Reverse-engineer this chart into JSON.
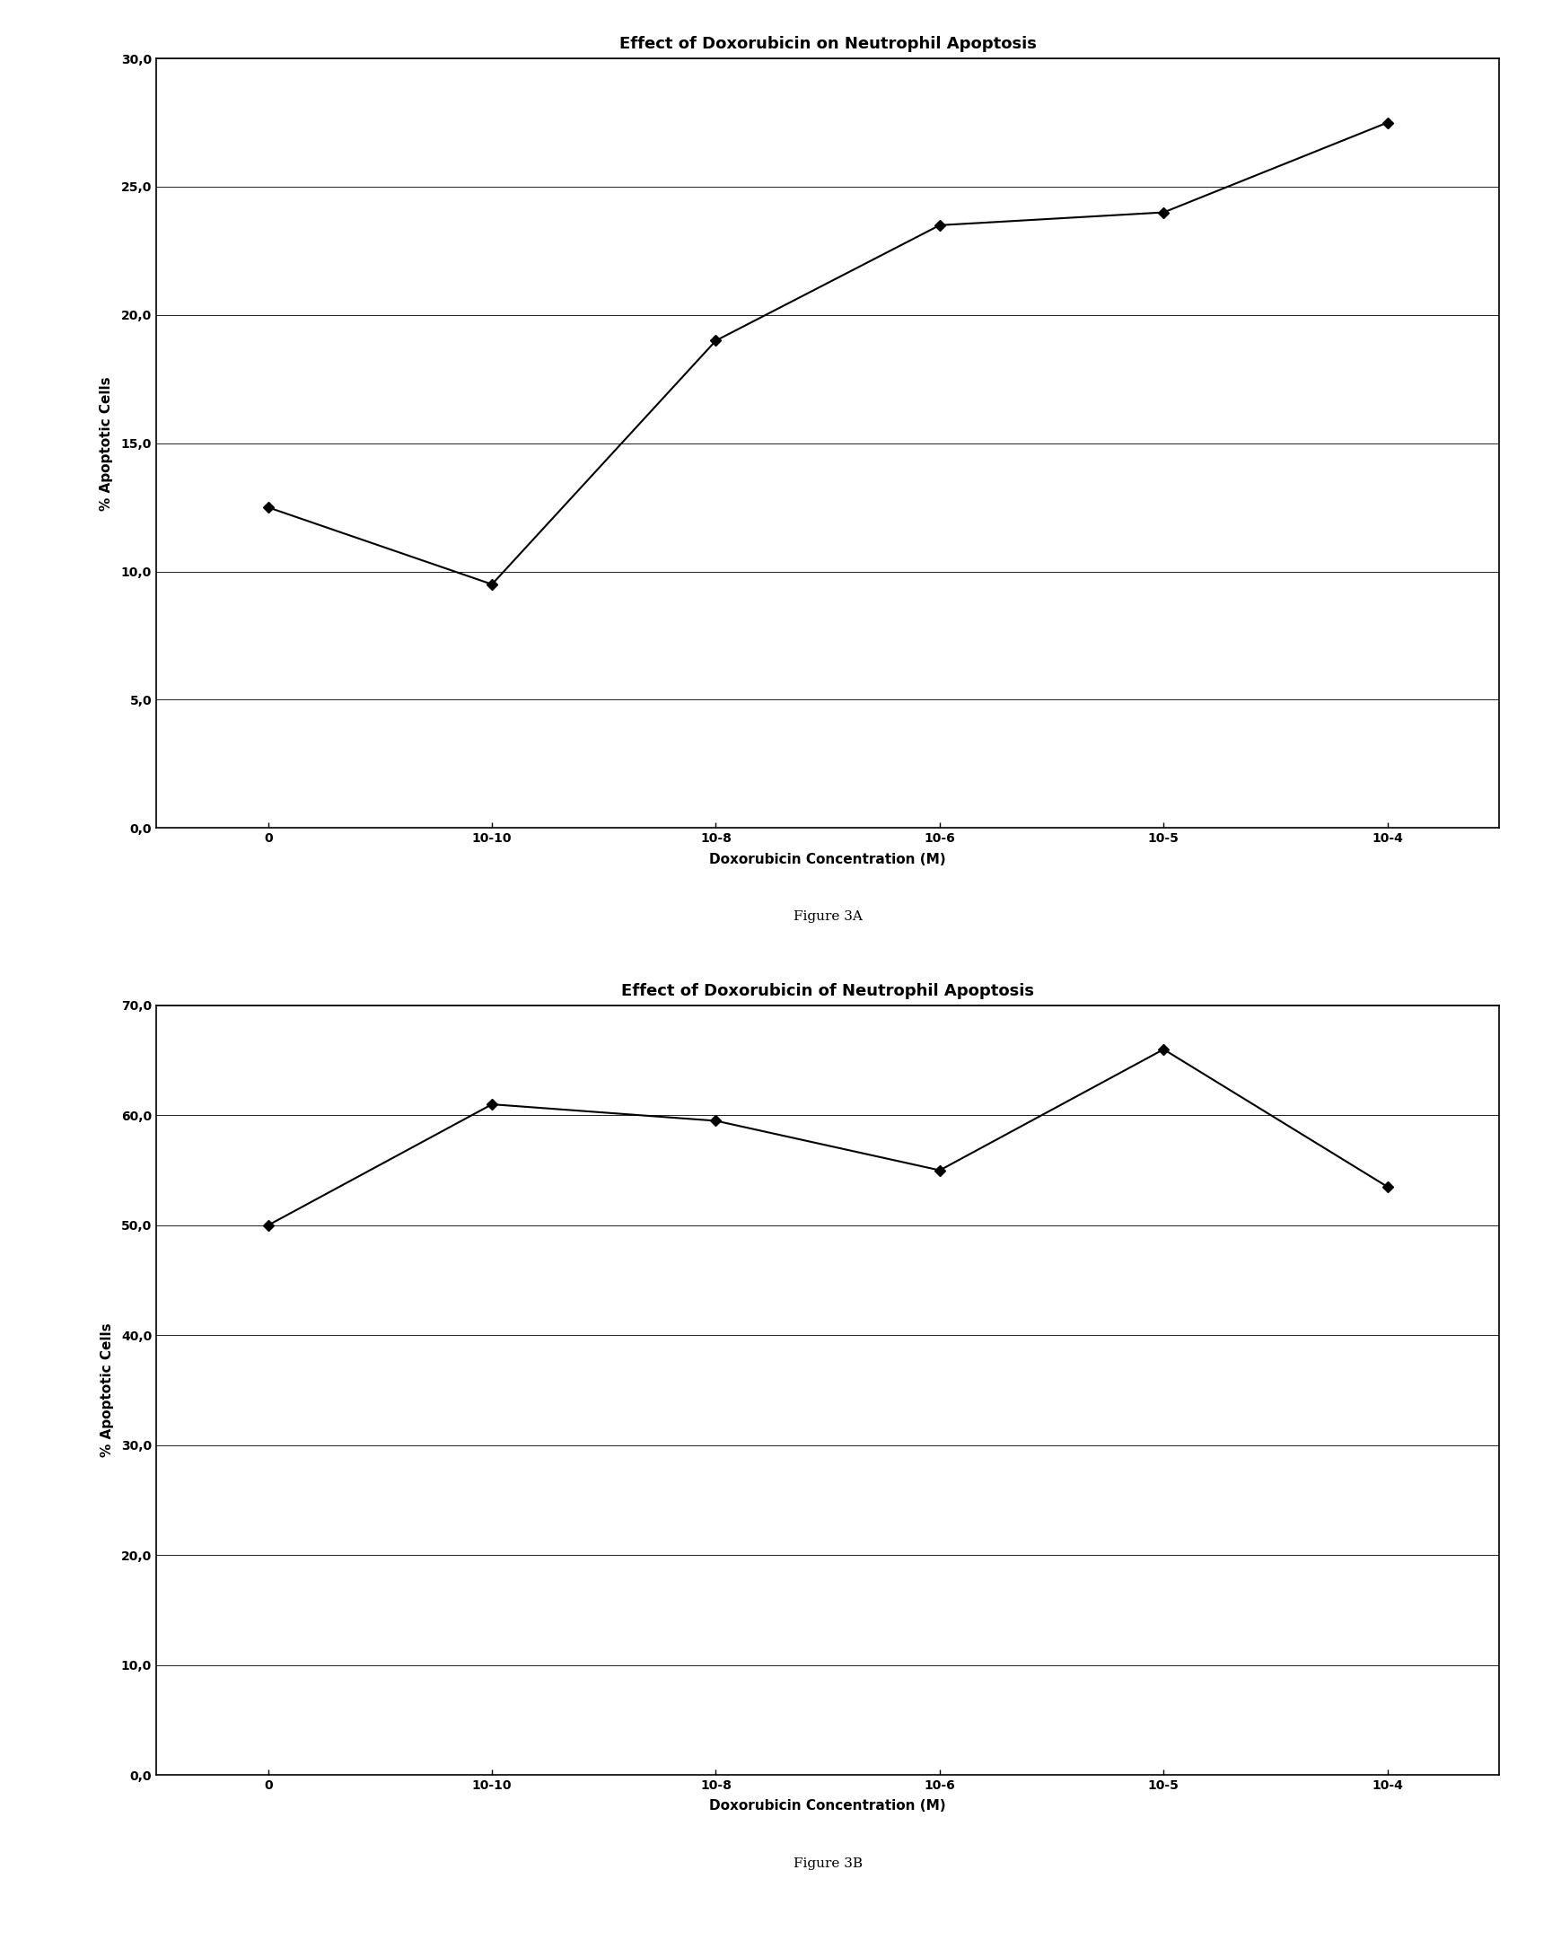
{
  "fig3A": {
    "title": "Effect of Doxorubicin on Neutrophil Apoptosis",
    "xlabel": "Doxorubicin Concentration (M)",
    "ylabel": "% Apoptotic Cells",
    "x_labels": [
      "0",
      "10-10",
      "10-8",
      "10-6",
      "10-5",
      "10-4"
    ],
    "y_values": [
      12.5,
      9.5,
      19.0,
      23.5,
      24.0,
      27.5
    ],
    "ylim": [
      0,
      30
    ],
    "yticks": [
      0.0,
      5.0,
      10.0,
      15.0,
      20.0,
      25.0,
      30.0
    ],
    "ytick_labels": [
      "0,0",
      "5,0",
      "10,0",
      "15,0",
      "20,0",
      "25,0",
      "30,0"
    ],
    "figure_label": "Figure 3A"
  },
  "fig3B": {
    "title": "Effect of Doxorubicin of Neutrophil Apoptosis",
    "xlabel": "Doxorubicin Concentration (M)",
    "ylabel": "% Apoptotic Cells",
    "x_labels": [
      "0",
      "10-10",
      "10-8",
      "10-6",
      "10-5",
      "10-4"
    ],
    "y_values": [
      50.0,
      61.0,
      59.5,
      55.0,
      66.0,
      53.5
    ],
    "ylim": [
      0,
      70
    ],
    "yticks": [
      0.0,
      10.0,
      20.0,
      30.0,
      40.0,
      50.0,
      60.0,
      70.0
    ],
    "ytick_labels": [
      "0,0",
      "10,0",
      "20,0",
      "30,0",
      "40,0",
      "50,0",
      "60,0",
      "70,0"
    ],
    "figure_label": "Figure 3B"
  },
  "line_color": "#000000",
  "marker": "D",
  "marker_size": 6,
  "marker_color": "#000000",
  "line_width": 1.5,
  "title_fontsize": 13,
  "label_fontsize": 11,
  "tick_fontsize": 10,
  "figure_label_fontsize": 11,
  "bg_color": "#ffffff",
  "box_color": "#000000"
}
